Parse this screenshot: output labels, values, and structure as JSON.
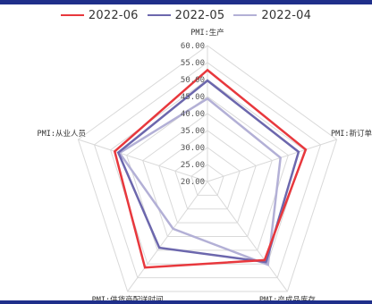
{
  "colors": {
    "frame": "#1f2f8a",
    "grid": "#d9d9d9",
    "text": "#333333"
  },
  "legend": {
    "items": [
      {
        "label": "2022-06",
        "color": "#e8383d"
      },
      {
        "label": "2022-05",
        "color": "#6c67ad"
      },
      {
        "label": "2022-04",
        "color": "#b3b0d6"
      }
    ]
  },
  "chart_data": {
    "type": "radar",
    "axes": [
      "PMI:生产",
      "PMI:新订单",
      "PMI:产成品库存",
      "PMI:供货商配送时间",
      "PMI:从业人员"
    ],
    "rmin": 20,
    "rmax": 60,
    "ticks": [
      "20.00",
      "25.00",
      "30.00",
      "35.00",
      "40.00",
      "45.00",
      "50.00",
      "55.00",
      "60.00"
    ],
    "tick_values": [
      20,
      25,
      30,
      35,
      40,
      45,
      50,
      55,
      60
    ],
    "legend_position": "top",
    "series": [
      {
        "name": "2022-06",
        "color": "#e8383d",
        "values": [
          52.8,
          50.4,
          48.6,
          51.3,
          48.7
        ]
      },
      {
        "name": "2022-05",
        "color": "#6c67ad",
        "values": [
          49.7,
          48.2,
          49.3,
          44.1,
          47.6
        ]
      },
      {
        "name": "2022-04",
        "color": "#b3b0d6",
        "values": [
          44.4,
          42.6,
          50.3,
          37.2,
          47.2
        ]
      }
    ]
  }
}
